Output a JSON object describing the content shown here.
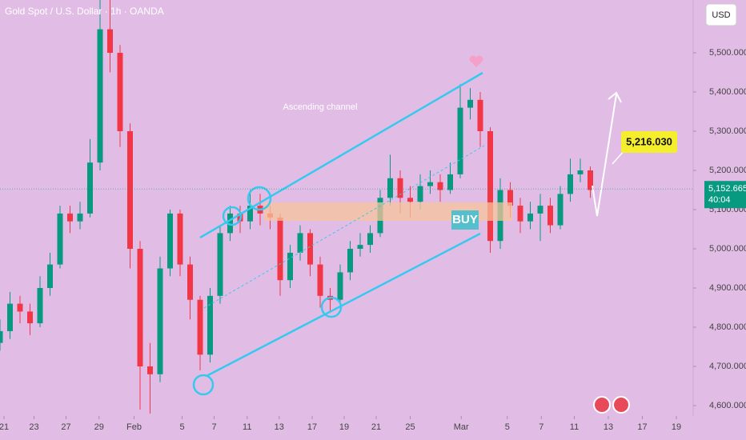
{
  "chart_data": {
    "type": "candlestick",
    "title": "Gold Spot / U.S. Dollar · 1h · OANDA",
    "currency": "USD",
    "x": [
      0,
      1,
      2,
      3,
      4,
      5,
      6,
      7,
      8,
      9,
      10,
      11,
      12,
      13,
      14,
      15,
      16,
      17,
      18,
      19,
      20,
      21,
      22,
      23,
      24,
      25,
      26,
      27,
      28,
      29,
      30,
      31,
      32,
      33,
      34,
      35,
      36,
      37,
      38,
      39,
      40,
      41,
      42,
      43,
      44,
      45,
      46,
      47,
      48,
      49,
      50,
      51,
      52,
      53,
      54,
      55,
      56,
      57,
      58,
      59
    ],
    "open": [
      4760,
      4790,
      4860,
      4840,
      4810,
      4900,
      4960,
      5090,
      5070,
      5090,
      5220,
      5560,
      5500,
      5300,
      5000,
      4700,
      4680,
      4950,
      5090,
      4960,
      4870,
      4730,
      4880,
      5040,
      5090,
      5070,
      5110,
      5090,
      5080,
      4920,
      4990,
      5040,
      4960,
      4880,
      4870,
      4940,
      5000,
      5010,
      5040,
      5130,
      5180,
      5130,
      5120,
      5160,
      5170,
      5150,
      5190,
      5360,
      5380,
      5300,
      5020,
      5150,
      5110,
      5070,
      5090,
      5110,
      5060,
      5140,
      5190,
      5200
    ],
    "high": [
      4820,
      4890,
      4880,
      4860,
      4930,
      4990,
      5110,
      5110,
      5120,
      5280,
      5680,
      5640,
      5520,
      5320,
      5020,
      4760,
      4980,
      5100,
      5100,
      4980,
      4880,
      4900,
      5060,
      5110,
      5110,
      5150,
      5140,
      5110,
      5090,
      5010,
      5060,
      5050,
      4980,
      4900,
      4960,
      5020,
      5040,
      5060,
      5150,
      5240,
      5200,
      5160,
      5190,
      5200,
      5190,
      5220,
      5420,
      5410,
      5400,
      5310,
      5180,
      5170,
      5130,
      5120,
      5140,
      5130,
      5160,
      5230,
      5230,
      5210
    ],
    "low": [
      4740,
      4770,
      4810,
      4780,
      4800,
      4880,
      4950,
      5040,
      5050,
      5080,
      5200,
      5450,
      5260,
      4950,
      4590,
      4580,
      4660,
      4930,
      4930,
      4820,
      4690,
      4710,
      4860,
      5020,
      5040,
      5050,
      5060,
      5050,
      4880,
      4900,
      4970,
      4930,
      4850,
      4840,
      4850,
      4920,
      4980,
      4990,
      5030,
      5110,
      5090,
      5080,
      5100,
      5140,
      5120,
      5140,
      5180,
      5330,
      5260,
      4990,
      5000,
      5080,
      5040,
      5050,
      5020,
      5040,
      5050,
      5120,
      5170,
      5130
    ],
    "close": [
      4790,
      4860,
      4840,
      4810,
      4900,
      4960,
      5090,
      5070,
      5090,
      5220,
      5560,
      5500,
      5300,
      5000,
      4700,
      4680,
      4950,
      5090,
      4960,
      4870,
      4730,
      4880,
      5040,
      5090,
      5070,
      5110,
      5090,
      5080,
      4920,
      4990,
      5040,
      4960,
      4880,
      4870,
      4940,
      5000,
      5010,
      5040,
      5130,
      5180,
      5130,
      5120,
      5160,
      5170,
      5150,
      5190,
      5360,
      5380,
      5300,
      5020,
      5150,
      5110,
      5070,
      5090,
      5110,
      5060,
      5140,
      5190,
      5200,
      5150
    ],
    "up_color": "#089981",
    "down_color": "#f23645",
    "xlim": [
      0,
      69.2
    ],
    "xticks": [
      {
        "value": 0.4,
        "label": "21"
      },
      {
        "value": 3.4,
        "label": "23"
      },
      {
        "value": 6.6,
        "label": "27"
      },
      {
        "value": 9.9,
        "label": "29"
      },
      {
        "value": 13.4,
        "label": "Feb"
      },
      {
        "value": 18.2,
        "label": "5"
      },
      {
        "value": 21.4,
        "label": "7"
      },
      {
        "value": 24.7,
        "label": "11"
      },
      {
        "value": 27.9,
        "label": "13"
      },
      {
        "value": 31.2,
        "label": "17"
      },
      {
        "value": 34.4,
        "label": "19"
      },
      {
        "value": 37.6,
        "label": "21"
      },
      {
        "value": 41,
        "label": "25"
      },
      {
        "value": 46.1,
        "label": "Mar"
      },
      {
        "value": 50.7,
        "label": "5"
      },
      {
        "value": 54.1,
        "label": "7"
      },
      {
        "value": 57.4,
        "label": "11"
      },
      {
        "value": 60.8,
        "label": "13"
      },
      {
        "value": 64.2,
        "label": "17"
      },
      {
        "value": 67.6,
        "label": "19"
      }
    ],
    "ylim": [
      4573.5,
      5634.7
    ],
    "yticks": [
      {
        "value": 4600,
        "label": "4,600.000"
      },
      {
        "value": 4700,
        "label": "4,700.000"
      },
      {
        "value": 4800,
        "label": "4,800.000"
      },
      {
        "value": 4900,
        "label": "4,900.000"
      },
      {
        "value": 5000,
        "label": "5,000.000"
      },
      {
        "value": 5100,
        "label": "5,100.000"
      },
      {
        "value": 5200,
        "label": "5,200.000"
      },
      {
        "value": 5300,
        "label": "5,300.000"
      },
      {
        "value": 5400,
        "label": "5,400.000"
      },
      {
        "value": 5500,
        "label": "5,500.000"
      }
    ],
    "last_price": {
      "value": 5152.665,
      "label": "5,152.665"
    },
    "countdown": "40:04",
    "annotations": [
      "Ascending channel",
      "BUY",
      "5,216.030"
    ]
  }
}
